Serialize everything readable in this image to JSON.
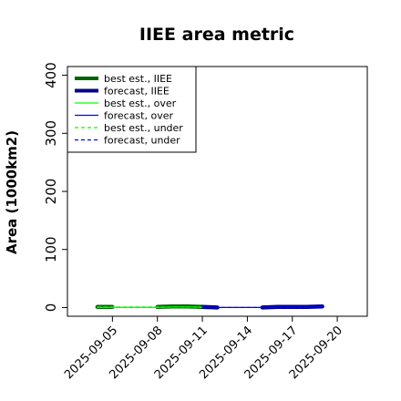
{
  "chart_data": {
    "type": "line",
    "title": "IIEE area metric",
    "xlabel": "",
    "ylabel": "Area (1000km2)",
    "xlim": [
      "2025-09-02",
      "2025-09-22"
    ],
    "ylim": [
      -15,
      415
    ],
    "yticks": [
      0,
      100,
      200,
      300,
      400
    ],
    "xticks": [
      "2025-09-05",
      "2025-09-08",
      "2025-09-11",
      "2025-09-14",
      "2025-09-17",
      "2025-09-20"
    ],
    "highlight_tick": "2025-09-11",
    "highlight_color": "#228b22",
    "grid": false,
    "legend_position": "top-left",
    "series": [
      {
        "name": "best est., IIEE",
        "color": "#006400",
        "style": "solid",
        "width": 4.5,
        "x": [
          "2025-09-04",
          "2025-09-05"
        ],
        "y": [
          1,
          1
        ]
      },
      {
        "name": "best est., IIEE",
        "color": "#006400",
        "style": "solid",
        "width": 4.5,
        "x": [
          "2025-09-08",
          "2025-09-09",
          "2025-09-10",
          "2025-09-11"
        ],
        "y": [
          1,
          2,
          2,
          1
        ]
      },
      {
        "name": "forecast, IIEE",
        "color": "#00008b",
        "style": "solid",
        "width": 4.5,
        "x": [
          "2025-09-11",
          "2025-09-12"
        ],
        "y": [
          1,
          0
        ]
      },
      {
        "name": "forecast, IIEE",
        "color": "#00008b",
        "style": "solid",
        "width": 4.5,
        "x": [
          "2025-09-15",
          "2025-09-16",
          "2025-09-17",
          "2025-09-18",
          "2025-09-19"
        ],
        "y": [
          0,
          1,
          1,
          1,
          2
        ]
      },
      {
        "name": "best est., over",
        "color": "#00ff00",
        "style": "solid",
        "width": 1.2,
        "x": [
          "2025-09-04",
          "2025-09-05",
          "2025-09-08",
          "2025-09-09",
          "2025-09-10",
          "2025-09-11"
        ],
        "y": [
          0,
          0,
          0,
          1,
          1,
          1
        ]
      },
      {
        "name": "forecast, over",
        "color": "#0000ff",
        "style": "solid",
        "width": 1.2,
        "x": [
          "2025-09-11",
          "2025-09-12",
          "2025-09-15",
          "2025-09-16",
          "2025-09-17",
          "2025-09-18",
          "2025-09-19"
        ],
        "y": [
          1,
          0,
          0,
          1,
          1,
          1,
          1
        ]
      },
      {
        "name": "best est., under",
        "color": "#00ff00",
        "style": "dashed",
        "width": 1.2,
        "x": [
          "2025-09-04",
          "2025-09-05",
          "2025-09-08",
          "2025-09-09",
          "2025-09-10",
          "2025-09-11"
        ],
        "y": [
          1,
          1,
          1,
          1,
          1,
          0
        ]
      },
      {
        "name": "forecast, under",
        "color": "#0000ff",
        "style": "dashed",
        "width": 1.2,
        "x": [
          "2025-09-11",
          "2025-09-12",
          "2025-09-15",
          "2025-09-16",
          "2025-09-17",
          "2025-09-18",
          "2025-09-19"
        ],
        "y": [
          0,
          0,
          0,
          0,
          0,
          0,
          1
        ]
      }
    ],
    "legend": [
      {
        "label": "best est., IIEE",
        "color": "#006400",
        "style": "solid",
        "width": 4
      },
      {
        "label": "forecast, IIEE",
        "color": "#00008b",
        "style": "solid",
        "width": 4
      },
      {
        "label": "best est., over",
        "color": "#00ff00",
        "style": "solid",
        "width": 1.2
      },
      {
        "label": "forecast, over",
        "color": "#0000ff",
        "style": "solid",
        "width": 1.2
      },
      {
        "label": "best est., under",
        "color": "#00ff00",
        "style": "dashed",
        "width": 1.2
      },
      {
        "label": "forecast, under",
        "color": "#0000ff",
        "style": "dashed",
        "width": 1.2
      }
    ]
  }
}
